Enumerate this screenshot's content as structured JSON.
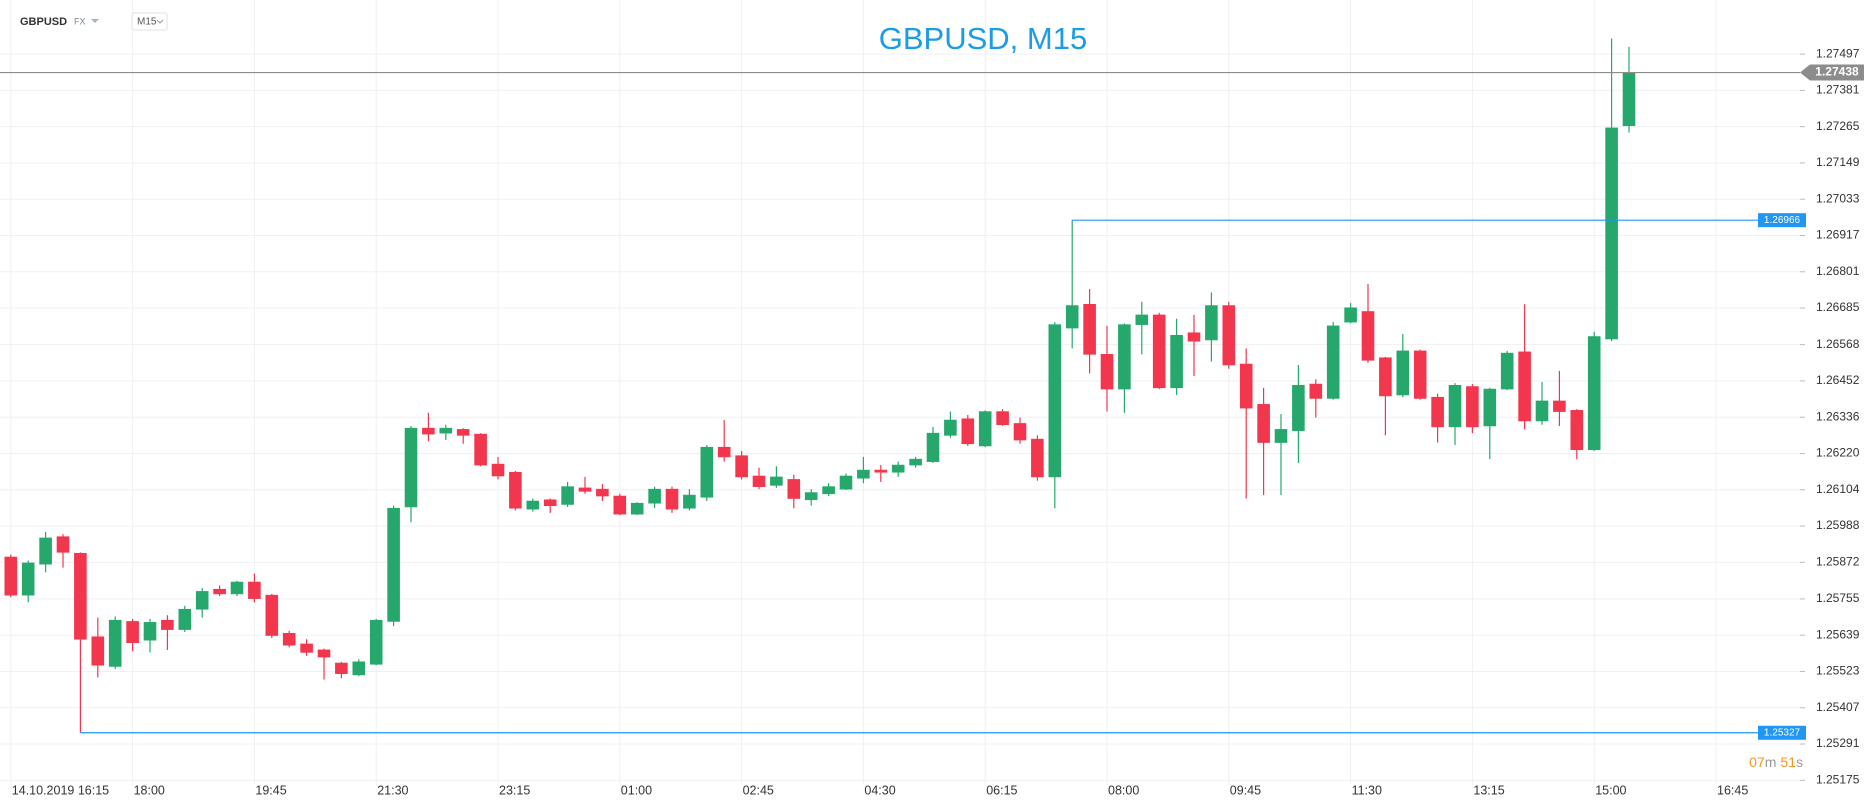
{
  "header": {
    "symbol": "GBPUSD",
    "market": "FX",
    "timeframe": "M15"
  },
  "countdown": {
    "minutes": "07",
    "minutes_unit": "m",
    "seconds": "51",
    "seconds_unit": "s"
  },
  "chart_data": {
    "type": "candlestick",
    "title": "GBPUSD, M15",
    "categories": [
      "14.10.2019 16:15",
      null,
      null,
      null,
      null,
      null,
      null,
      "18:00",
      null,
      null,
      null,
      null,
      null,
      null,
      "19:45",
      null,
      null,
      null,
      null,
      null,
      null,
      "21:30",
      null,
      null,
      null,
      null,
      null,
      null,
      "23:15",
      null,
      null,
      null,
      null,
      null,
      null,
      "01:00",
      null,
      null,
      null,
      null,
      null,
      null,
      "02:45",
      null,
      null,
      null,
      null,
      null,
      null,
      "04:30",
      null,
      null,
      null,
      null,
      null,
      null,
      "06:15",
      null,
      null,
      null,
      null,
      null,
      null,
      "08:00",
      null,
      null,
      null,
      null,
      null,
      null,
      "09:45",
      null,
      null,
      null,
      null,
      null,
      null,
      "11:30",
      null,
      null,
      null,
      null,
      null,
      null,
      "13:15",
      null,
      null,
      null,
      null,
      null,
      null,
      "15:00",
      null,
      null,
      null,
      null,
      null,
      null,
      "16:45"
    ],
    "open": [
      1.25889,
      1.25767,
      1.25866,
      1.25954,
      1.25901,
      1.25634,
      1.25539,
      1.25683,
      1.25623,
      1.25687,
      1.25657,
      1.25722,
      1.25786,
      1.25771,
      1.25809,
      1.25767,
      1.25645,
      1.25611,
      1.25592,
      1.2555,
      1.25512,
      1.25546,
      1.25683,
      1.26049,
      1.26301,
      1.26285,
      1.26297,
      1.26282,
      1.26186,
      1.2616,
      1.26042,
      1.26072,
      1.26057,
      1.2611,
      1.26106,
      1.26084,
      1.26026,
      1.26061,
      1.26106,
      1.26045,
      1.2608,
      1.2624,
      1.26213,
      1.26148,
      1.26118,
      1.26137,
      1.26072,
      1.26091,
      1.26106,
      1.26141,
      1.26167,
      1.2616,
      1.26183,
      1.26194,
      1.26278,
      1.26331,
      1.26244,
      1.26354,
      1.26316,
      1.26266,
      1.26145,
      1.26621,
      1.26697,
      1.26537,
      1.26426,
      1.26632,
      1.26663,
      1.2643,
      1.26606,
      1.26583,
      1.26693,
      1.26506,
      1.26377,
      1.26255,
      1.26293,
      1.26442,
      1.26396,
      1.2664,
      1.26674,
      1.26526,
      1.26407,
      1.26548,
      1.264,
      1.26305,
      1.26434,
      1.26308,
      1.26426,
      1.26545,
      1.26324,
      1.26388,
      1.26358,
      1.26232,
      1.26586,
      1.27268,
      null,
      null,
      null,
      null,
      null
    ],
    "high": [
      1.25897,
      1.25878,
      1.25969,
      1.25962,
      1.25904,
      1.25695,
      1.25699,
      1.25691,
      1.25691,
      1.25703,
      1.25733,
      1.2579,
      1.25798,
      1.25813,
      1.25836,
      1.25771,
      1.25653,
      1.25626,
      1.25596,
      1.25554,
      1.25562,
      1.25691,
      1.26053,
      1.26308,
      1.2635,
      1.26312,
      1.26301,
      1.26285,
      1.26209,
      1.26164,
      1.26076,
      1.26076,
      1.26129,
      1.26145,
      1.26122,
      1.26091,
      1.26064,
      1.26114,
      1.26114,
      1.26106,
      1.26247,
      1.26327,
      1.26228,
      1.26175,
      1.26179,
      1.26152,
      1.26106,
      1.26125,
      1.26156,
      1.26209,
      1.26183,
      1.26194,
      1.26209,
      1.26305,
      1.26354,
      1.26343,
      1.26358,
      1.26362,
      1.26335,
      1.26278,
      1.2664,
      1.26966,
      1.26746,
      1.26628,
      1.26636,
      1.26705,
      1.2667,
      1.26651,
      1.26663,
      1.26735,
      1.26705,
      1.26556,
      1.2643,
      1.26346,
      1.26503,
      1.26457,
      1.2664,
      1.26701,
      1.26762,
      1.26529,
      1.26602,
      1.26552,
      1.26411,
      1.26445,
      1.26442,
      1.2643,
      1.26548,
      1.26697,
      1.26449,
      1.26484,
      1.26362,
      1.26609,
      1.27547,
      1.2752,
      null,
      null,
      null,
      null,
      null
    ],
    "low": [
      1.2576,
      1.25744,
      1.2584,
      1.25855,
      1.25327,
      1.25504,
      1.25531,
      1.25588,
      1.25584,
      1.25592,
      1.25649,
      1.25695,
      1.25764,
      1.25764,
      1.25744,
      1.2563,
      1.256,
      1.25573,
      1.25497,
      1.25501,
      1.25508,
      1.25543,
      1.25668,
      1.26,
      1.26259,
      1.26263,
      1.26251,
      1.26179,
      1.26137,
      1.26038,
      1.26034,
      1.2603,
      1.26049,
      1.26091,
      1.26068,
      1.26023,
      1.26023,
      1.26045,
      1.2603,
      1.26038,
      1.26068,
      1.26194,
      1.26137,
      1.26106,
      1.2611,
      1.26045,
      1.26053,
      1.26084,
      1.26103,
      1.26125,
      1.26129,
      1.26145,
      1.26175,
      1.2619,
      1.2627,
      1.26244,
      1.2624,
      1.26308,
      1.26251,
      1.26133,
      1.26045,
      1.26556,
      1.26476,
      1.26354,
      1.2635,
      1.26537,
      1.26426,
      1.26407,
      1.26468,
      1.26514,
      1.26491,
      1.26076,
      1.26087,
      1.26087,
      1.2619,
      1.26335,
      1.26392,
      1.26636,
      1.2651,
      1.26278,
      1.264,
      1.26392,
      1.26255,
      1.26247,
      1.26285,
      1.26202,
      1.26423,
      1.26297,
      1.26312,
      1.26308,
      1.26202,
      1.26228,
      1.26579,
      1.27246,
      null,
      null,
      null,
      null,
      null
    ],
    "close": [
      1.25767,
      1.2587,
      1.2595,
      1.25904,
      1.25626,
      1.25543,
      1.25687,
      1.25615,
      1.2568,
      1.25657,
      1.25722,
      1.25779,
      1.25771,
      1.25809,
      1.25756,
      1.25638,
      1.25607,
      1.25584,
      1.25569,
      1.25516,
      1.25554,
      1.25687,
      1.26045,
      1.26301,
      1.26282,
      1.26301,
      1.26278,
      1.26183,
      1.26148,
      1.26045,
      1.26068,
      1.26053,
      1.26114,
      1.26099,
      1.26084,
      1.26026,
      1.26061,
      1.26106,
      1.26042,
      1.26087,
      1.2624,
      1.26209,
      1.26145,
      1.26114,
      1.26145,
      1.26076,
      1.26095,
      1.26114,
      1.26148,
      1.26167,
      1.2616,
      1.26183,
      1.26202,
      1.26285,
      1.26327,
      1.26251,
      1.26354,
      1.26312,
      1.26263,
      1.26145,
      1.26632,
      1.26693,
      1.26537,
      1.26426,
      1.26632,
      1.26663,
      1.2643,
      1.26598,
      1.26579,
      1.26693,
      1.26503,
      1.26365,
      1.26255,
      1.26297,
      1.26438,
      1.26396,
      1.26628,
      1.26686,
      1.26518,
      1.26404,
      1.26548,
      1.26396,
      1.26305,
      1.26438,
      1.26305,
      1.26426,
      1.26541,
      1.26324,
      1.26388,
      1.26354,
      1.26232,
      1.26594,
      1.27261,
      1.27438,
      null,
      null,
      null,
      null,
      null
    ],
    "up_color": "#26a86d",
    "down_color": "#f2364d",
    "last_price": 1.27438,
    "last_price_color": "#8c8c8c",
    "marker_lines": [
      1.26966,
      1.25327
    ],
    "marker_color": "#2196f3",
    "ylim": [
      1.2516,
      1.2767
    ],
    "yticks": [
      1.27497,
      1.27381,
      1.27265,
      1.27149,
      1.27033,
      1.26917,
      1.26801,
      1.26685,
      1.26568,
      1.26452,
      1.26336,
      {
        "value": 1.2622,
        "label": "1.26220"
      },
      1.26104,
      1.25988,
      1.25872,
      1.25755,
      1.25639,
      1.25523,
      1.25407,
      1.25291,
      1.25175
    ],
    "grid": true
  }
}
